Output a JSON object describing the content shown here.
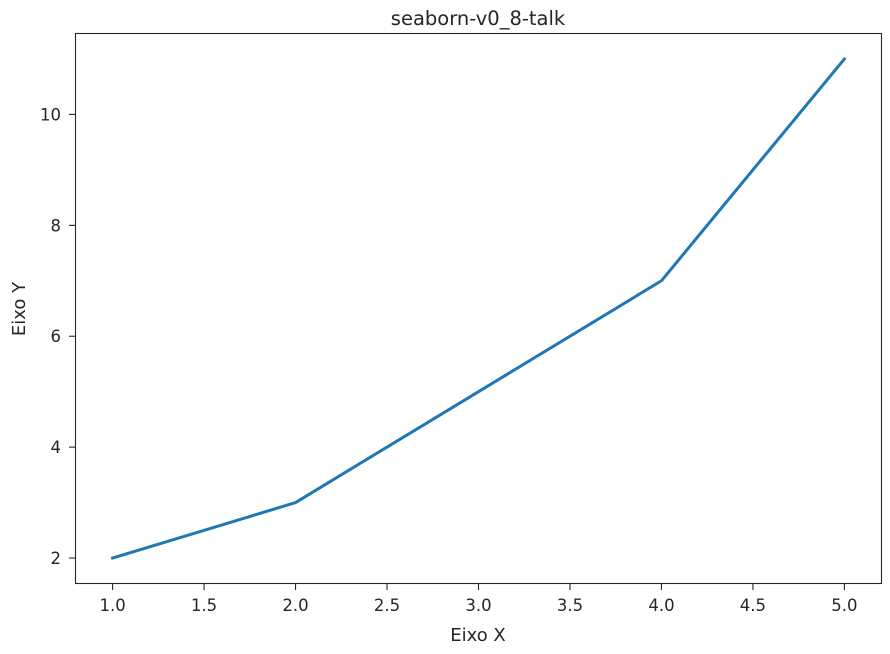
{
  "chart_data": {
    "type": "line",
    "title": "seaborn-v0_8-talk",
    "xlabel": "Eixo X",
    "ylabel": "Eixo Y",
    "x": [
      1,
      2,
      3,
      4,
      5
    ],
    "series": [
      {
        "color": "#1f77b4",
        "values": [
          2,
          3,
          5,
          7,
          11
        ]
      }
    ],
    "xlim": [
      0.8,
      5.2
    ],
    "ylim": [
      1.55,
      11.45
    ],
    "xticks": [
      1.0,
      1.5,
      2.0,
      2.5,
      3.0,
      3.5,
      4.0,
      4.5,
      5.0
    ],
    "xtick_labels": [
      "1.0",
      "1.5",
      "2.0",
      "2.5",
      "3.0",
      "3.5",
      "4.0",
      "4.5",
      "5.0"
    ],
    "yticks": [
      2,
      4,
      6,
      8,
      10
    ],
    "ytick_labels": [
      "2",
      "4",
      "6",
      "8",
      "10"
    ],
    "grid": false,
    "legend": "none"
  }
}
